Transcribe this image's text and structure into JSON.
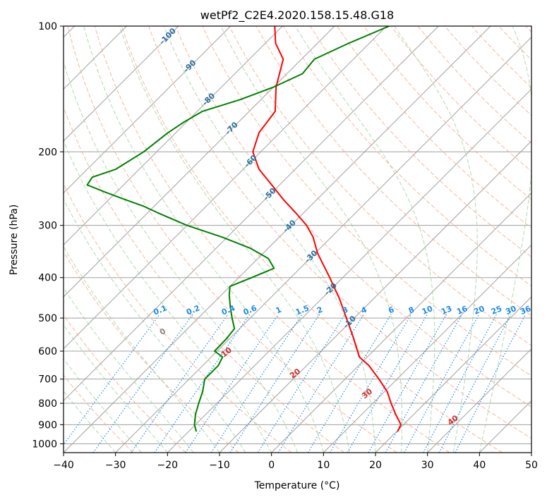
{
  "chart_data": {
    "type": "skew-t",
    "title": "wetPf2_C2E4.2020.158.15.48.G18",
    "xlabel": "Temperature (°C)",
    "ylabel": "Pressure (hPa)",
    "xlim": [
      -40,
      50
    ],
    "ylim": [
      1050,
      100
    ],
    "y_scale": "log",
    "x_ticks": [
      "−40",
      "−30",
      "−20",
      "−10",
      "0",
      "10",
      "20",
      "30",
      "40",
      "50"
    ],
    "x_tick_values": [
      -40,
      -30,
      -20,
      -10,
      0,
      10,
      20,
      30,
      40,
      50
    ],
    "y_ticks": [
      "100",
      "200",
      "300",
      "400",
      "500",
      "600",
      "700",
      "800",
      "900",
      "1000"
    ],
    "y_tick_values": [
      100,
      200,
      300,
      400,
      500,
      600,
      700,
      800,
      900,
      1000
    ],
    "grid": true,
    "colors": {
      "temperature": "#ff0000",
      "dewpoint": "#008000",
      "isotherm": "#a0a0a0",
      "dry_adiabat": "#f4a582",
      "moist_adiabat": "#9ccf9c",
      "mixing_ratio": "#1f8ae8",
      "frame": "#000000"
    },
    "series": [
      {
        "key": "temperature",
        "pressure": [
          935,
          900,
          850,
          800,
          750,
          700,
          650,
          620,
          600,
          550,
          500,
          450,
          400,
          350,
          320,
          300,
          280,
          260,
          240,
          220,
          200,
          180,
          160,
          140,
          120,
          110,
          100
        ],
        "temp": [
          20.2,
          19.5,
          16.5,
          13.5,
          10.5,
          6.5,
          2.0,
          -1.5,
          -3.0,
          -7.0,
          -11.5,
          -16.5,
          -22.5,
          -29.5,
          -33.5,
          -37.0,
          -41.5,
          -46.5,
          -51.5,
          -57.0,
          -61.5,
          -64.0,
          -65.0,
          -69.5,
          -73.5,
          -78.0,
          -81.5
        ]
      },
      {
        "key": "dewpoint",
        "pressure": [
          935,
          900,
          850,
          800,
          750,
          700,
          650,
          620,
          600,
          560,
          530,
          500,
          470,
          440,
          420,
          400,
          380,
          360,
          340,
          320,
          300,
          280,
          270,
          260,
          250,
          240,
          230,
          220,
          200,
          180,
          170,
          160,
          150,
          140,
          130,
          120,
          110,
          100
        ],
        "temp": [
          -18.5,
          -20.2,
          -22.0,
          -23.5,
          -25.0,
          -27.0,
          -27.0,
          -27.8,
          -30.5,
          -30.6,
          -31.0,
          -33.5,
          -36.0,
          -38.5,
          -40.0,
          -37.5,
          -35.0,
          -38.0,
          -43.5,
          -51.0,
          -60.0,
          -68.0,
          -72.0,
          -77.0,
          -82.0,
          -87.0,
          -87.5,
          -84.5,
          -82.5,
          -81.5,
          -80.5,
          -79.0,
          -74.0,
          -70.0,
          -67.0,
          -67.5,
          -64.0,
          -59.5
        ]
      }
    ],
    "isotherm_labels": {
      "values": [
        -100,
        -90,
        -80,
        -70,
        -60,
        -50,
        -40,
        -30,
        -20,
        -10
      ],
      "text": [
        "-100",
        "-90",
        "-80",
        "-70",
        "-60",
        "-50",
        "-40",
        "-30",
        "-20",
        "-10"
      ],
      "color": "#2a70a0"
    },
    "dry_adiabat_labels": {
      "theta": [
        0,
        10,
        20,
        30,
        40
      ],
      "text": [
        "0",
        "10",
        "20",
        "30",
        "40"
      ],
      "colors": [
        "#888888",
        "#d03030",
        "#d03030",
        "#d03030",
        "#d03030"
      ]
    },
    "mixing_ratio_labels": {
      "values": [
        0.1,
        0.2,
        0.4,
        0.6,
        1,
        1.5,
        2,
        3,
        4,
        6,
        8,
        10,
        13,
        16,
        20,
        25,
        30,
        36
      ],
      "text": [
        "0.1",
        "0.2",
        "0.4",
        "0.6",
        "1",
        "1.5",
        "2",
        "3",
        "4",
        "6",
        "8",
        "10",
        "13",
        "16",
        "20",
        "25",
        "30",
        "36"
      ],
      "at_pressure": 485
    }
  }
}
